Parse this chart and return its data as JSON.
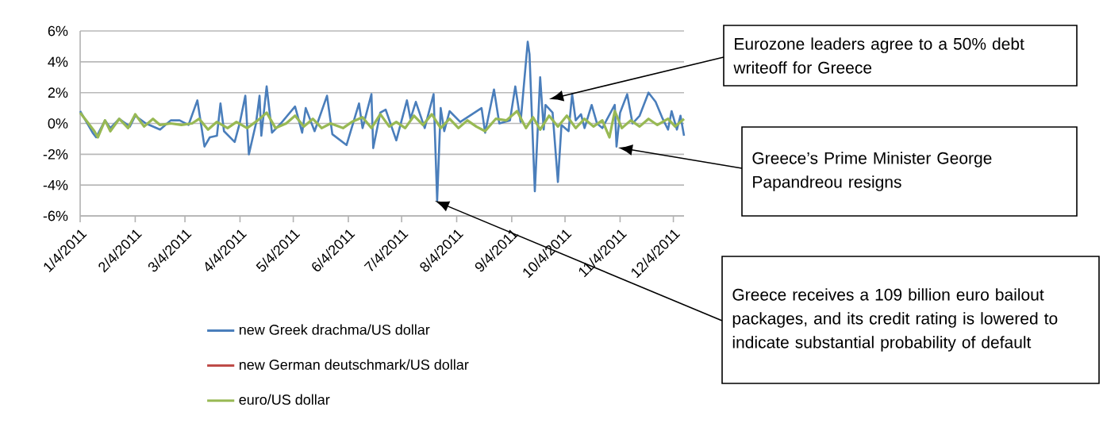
{
  "chart_data": {
    "type": "line",
    "xlim": [
      "2011-01-04",
      "2011-12-10"
    ],
    "xticks": [
      {
        "value": "2011-01-04",
        "label": "1/4/2011"
      },
      {
        "value": "2011-02-04",
        "label": "2/4/2011"
      },
      {
        "value": "2011-03-04",
        "label": "3/4/2011"
      },
      {
        "value": "2011-04-04",
        "label": "4/4/2011"
      },
      {
        "value": "2011-05-04",
        "label": "5/4/2011"
      },
      {
        "value": "2011-06-04",
        "label": "6/4/2011"
      },
      {
        "value": "2011-07-04",
        "label": "7/4/2011"
      },
      {
        "value": "2011-08-04",
        "label": "8/4/2011"
      },
      {
        "value": "2011-09-04",
        "label": "9/4/2011"
      },
      {
        "value": "2011-10-04",
        "label": "10/4/2011"
      },
      {
        "value": "2011-11-04",
        "label": "11/4/2011"
      },
      {
        "value": "2011-12-04",
        "label": "12/4/2011"
      }
    ],
    "ylim": [
      -6,
      6
    ],
    "yticks": [
      {
        "value": -6,
        "label": "-6%"
      },
      {
        "value": -4,
        "label": "-4%"
      },
      {
        "value": -2,
        "label": "-2%"
      },
      {
        "value": 0,
        "label": "0%"
      },
      {
        "value": 2,
        "label": "2%"
      },
      {
        "value": 4,
        "label": "4%"
      },
      {
        "value": 6,
        "label": "6%"
      }
    ],
    "grid": "y",
    "legend": "bottom",
    "marker": "none",
    "line_style": "solid",
    "series": [
      {
        "name": "new Greek drachma/US dollar",
        "color": "#4a7ebb",
        "x": [
          "2011-01-04",
          "2011-01-07",
          "2011-01-11",
          "2011-01-13",
          "2011-01-18",
          "2011-01-21",
          "2011-01-26",
          "2011-02-01",
          "2011-02-04",
          "2011-02-10",
          "2011-02-18",
          "2011-02-24",
          "2011-03-01",
          "2011-03-06",
          "2011-03-11",
          "2011-03-15",
          "2011-03-18",
          "2011-03-22",
          "2011-03-24",
          "2011-03-26",
          "2011-04-01",
          "2011-04-04",
          "2011-04-07",
          "2011-04-09",
          "2011-04-13",
          "2011-04-15",
          "2011-04-16",
          "2011-04-19",
          "2011-04-22",
          "2011-04-27",
          "2011-05-05",
          "2011-05-09",
          "2011-05-11",
          "2011-05-16",
          "2011-05-23",
          "2011-05-26",
          "2011-06-03",
          "2011-06-10",
          "2011-06-12",
          "2011-06-17",
          "2011-06-18",
          "2011-06-22",
          "2011-06-25",
          "2011-07-01",
          "2011-07-07",
          "2011-07-09",
          "2011-07-12",
          "2011-07-17",
          "2011-07-22",
          "2011-07-24",
          "2011-07-26",
          "2011-07-28",
          "2011-07-31",
          "2011-08-06",
          "2011-08-18",
          "2011-08-20",
          "2011-08-25",
          "2011-08-28",
          "2011-09-03",
          "2011-09-06",
          "2011-09-09",
          "2011-09-13",
          "2011-09-14",
          "2011-09-17",
          "2011-09-20",
          "2011-09-22",
          "2011-09-23",
          "2011-09-27",
          "2011-09-30",
          "2011-10-02",
          "2011-10-06",
          "2011-10-08",
          "2011-10-10",
          "2011-10-13",
          "2011-10-15",
          "2011-10-19",
          "2011-10-22",
          "2011-10-25",
          "2011-11-01",
          "2011-11-02",
          "2011-11-04",
          "2011-11-08",
          "2011-11-11",
          "2011-11-15",
          "2011-11-20",
          "2011-11-24",
          "2011-11-28",
          "2011-12-01",
          "2011-12-03",
          "2011-12-06",
          "2011-12-08",
          "2011-12-10"
        ],
        "values": [
          0.8,
          0.2,
          -0.6,
          -0.9,
          0.2,
          -0.3,
          0.3,
          -0.2,
          0.5,
          0.0,
          -0.4,
          0.2,
          0.2,
          -0.1,
          1.5,
          -1.5,
          -0.9,
          -0.8,
          1.3,
          -0.5,
          -1.2,
          0.1,
          1.8,
          -2.0,
          0.0,
          1.8,
          -0.8,
          2.4,
          -0.6,
          0.0,
          1.1,
          -0.6,
          1.0,
          -0.5,
          1.8,
          -0.7,
          -1.4,
          1.3,
          -0.3,
          1.9,
          -1.6,
          0.7,
          0.9,
          -1.1,
          1.5,
          0.3,
          1.4,
          -0.3,
          1.9,
          -5.0,
          1.0,
          -0.5,
          0.8,
          0.1,
          1.0,
          -0.6,
          2.2,
          0.0,
          0.2,
          2.4,
          0.1,
          5.3,
          4.5,
          -4.4,
          3.0,
          -0.4,
          1.2,
          0.7,
          -3.8,
          -0.1,
          -0.5,
          1.9,
          0.2,
          0.6,
          -0.3,
          1.2,
          0.0,
          -0.3,
          1.2,
          -1.5,
          0.7,
          1.9,
          0.0,
          0.5,
          2.0,
          1.4,
          0.3,
          -0.4,
          0.8,
          -0.4,
          0.5,
          -0.8
        ]
      },
      {
        "name": "new German deutschmark/US dollar",
        "color": "#be4b48"
      },
      {
        "name": "euro/US dollar",
        "color": "#98b954",
        "x": [
          "2011-01-04",
          "2011-01-08",
          "2011-01-12",
          "2011-01-14",
          "2011-01-18",
          "2011-01-21",
          "2011-01-26",
          "2011-01-31",
          "2011-02-04",
          "2011-02-09",
          "2011-02-14",
          "2011-02-18",
          "2011-02-24",
          "2011-03-02",
          "2011-03-08",
          "2011-03-12",
          "2011-03-17",
          "2011-03-22",
          "2011-03-28",
          "2011-04-02",
          "2011-04-08",
          "2011-04-14",
          "2011-04-19",
          "2011-04-24",
          "2011-04-30",
          "2011-05-05",
          "2011-05-10",
          "2011-05-15",
          "2011-05-20",
          "2011-05-25",
          "2011-06-01",
          "2011-06-06",
          "2011-06-12",
          "2011-06-17",
          "2011-06-22",
          "2011-06-27",
          "2011-07-01",
          "2011-07-06",
          "2011-07-11",
          "2011-07-16",
          "2011-07-21",
          "2011-07-26",
          "2011-07-31",
          "2011-08-05",
          "2011-08-10",
          "2011-08-15",
          "2011-08-20",
          "2011-08-26",
          "2011-09-01",
          "2011-09-07",
          "2011-09-12",
          "2011-09-16",
          "2011-09-20",
          "2011-09-25",
          "2011-09-30",
          "2011-10-05",
          "2011-10-10",
          "2011-10-15",
          "2011-10-20",
          "2011-10-25",
          "2011-10-29",
          "2011-11-01",
          "2011-11-05",
          "2011-11-10",
          "2011-11-15",
          "2011-11-20",
          "2011-11-25",
          "2011-12-01",
          "2011-12-05",
          "2011-12-10"
        ],
        "values": [
          0.7,
          0.1,
          -0.5,
          -0.9,
          0.2,
          -0.5,
          0.3,
          -0.3,
          0.6,
          -0.2,
          0.3,
          -0.1,
          0.0,
          -0.1,
          0.0,
          0.3,
          -0.4,
          0.1,
          -0.3,
          0.1,
          -0.3,
          0.2,
          0.7,
          -0.3,
          0.0,
          0.5,
          -0.2,
          0.3,
          -0.3,
          0.0,
          -0.3,
          0.1,
          0.4,
          -0.3,
          0.6,
          -0.2,
          0.1,
          -0.3,
          0.5,
          -0.1,
          0.6,
          -0.3,
          0.3,
          -0.3,
          0.2,
          -0.2,
          -0.5,
          0.3,
          0.2,
          0.8,
          -0.3,
          0.4,
          -0.4,
          0.5,
          -0.2,
          0.5,
          -0.3,
          0.3,
          -0.2,
          0.2,
          -0.9,
          0.8,
          -0.3,
          0.2,
          -0.2,
          0.3,
          -0.1,
          0.3,
          -0.2,
          0.3
        ]
      }
    ],
    "annotations": [
      "Eurozone leaders agree to a 50% debt writeoff for Greece",
      "Greece’s Prime Minister George Papandreou resigns",
      "Greece receives a 109 billion euro bailout packages, and its credit rating is lowered to indicate substantial probability of default"
    ]
  }
}
